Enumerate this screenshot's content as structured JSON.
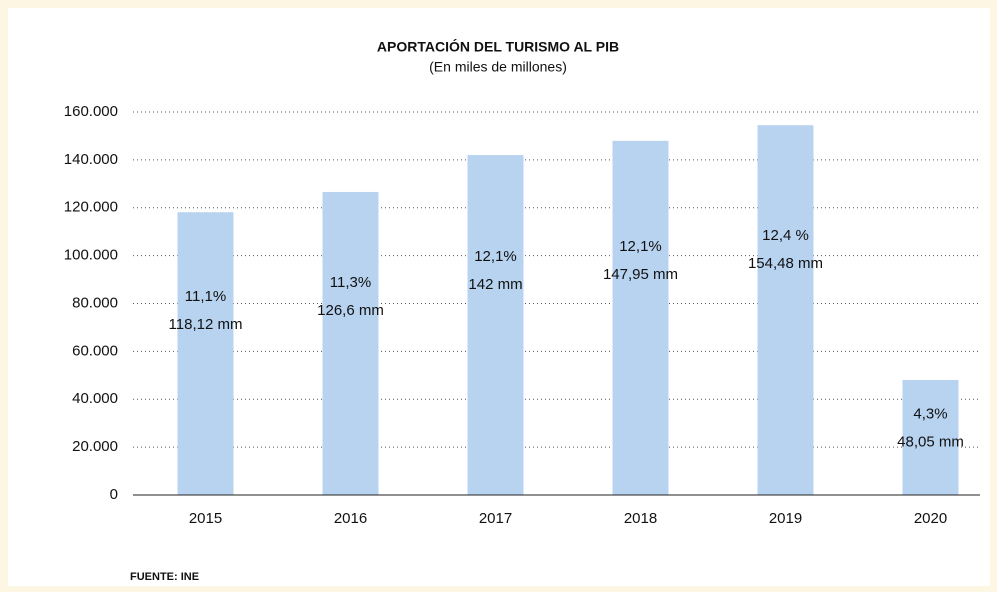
{
  "chart_data": {
    "type": "bar",
    "title": "APORTACIÓN DEL TURISMO AL PIB",
    "subtitle": "(En miles de millones)",
    "categories": [
      "2015",
      "2016",
      "2017",
      "2018",
      "2019",
      "2020"
    ],
    "values": [
      118120,
      126600,
      142000,
      147950,
      154480,
      48050
    ],
    "value_labels": [
      "118,12 mm",
      "126,6 mm",
      "142 mm",
      "147,95 mm",
      "154,48 mm",
      "48,05 mm"
    ],
    "share_labels": [
      "11,1%",
      "11,3%",
      "12,1%",
      "12,1%",
      "12,4 %",
      "4,3%"
    ],
    "color": "#b7d3f0",
    "ylim": [
      0,
      160000
    ],
    "yticks": [
      0,
      {
        "value": 20000,
        "label": "20.000"
      },
      {
        "value": 40000,
        "label": "40.000"
      },
      {
        "value": 60000,
        "label": "60.000"
      },
      {
        "value": 80000,
        "label": "80.000"
      },
      {
        "value": 100000,
        "label": "100.000"
      },
      {
        "value": 120000,
        "label": "120.000"
      },
      {
        "value": 140000,
        "label": "140.000"
      },
      {
        "value": 160000,
        "label": "160.000"
      }
    ],
    "grid": true,
    "source": "FUENTE: INE"
  }
}
